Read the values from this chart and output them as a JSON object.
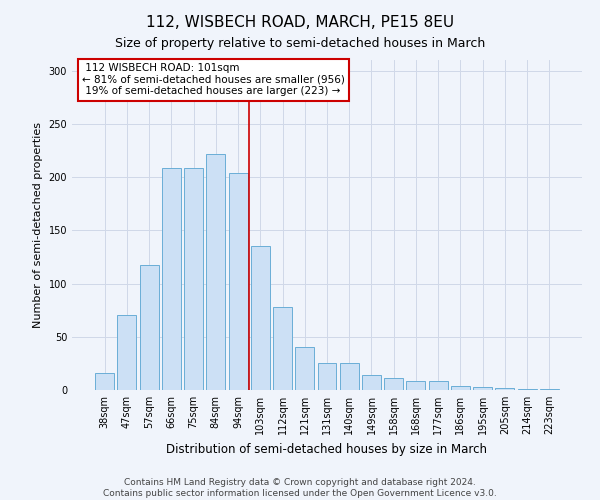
{
  "title": "112, WISBECH ROAD, MARCH, PE15 8EU",
  "subtitle": "Size of property relative to semi-detached houses in March",
  "xlabel": "Distribution of semi-detached houses by size in March",
  "ylabel": "Number of semi-detached properties",
  "categories": [
    "38sqm",
    "47sqm",
    "57sqm",
    "66sqm",
    "75sqm",
    "84sqm",
    "94sqm",
    "103sqm",
    "112sqm",
    "121sqm",
    "131sqm",
    "140sqm",
    "149sqm",
    "158sqm",
    "168sqm",
    "177sqm",
    "186sqm",
    "195sqm",
    "205sqm",
    "214sqm",
    "223sqm"
  ],
  "values": [
    16,
    70,
    117,
    209,
    209,
    222,
    204,
    135,
    78,
    40,
    25,
    25,
    14,
    11,
    8,
    8,
    4,
    3,
    2,
    1,
    1
  ],
  "bar_color": "#cce0f5",
  "bar_edge_color": "#6aaed6",
  "property_bin_index": 7,
  "property_label": "112 WISBECH ROAD: 101sqm",
  "pct_smaller": 81,
  "n_smaller": 956,
  "pct_larger": 19,
  "n_larger": 223,
  "annotation_box_color": "#ffffff",
  "annotation_box_edge_color": "#cc0000",
  "vline_color": "#cc0000",
  "grid_color": "#d0d8e8",
  "background_color": "#f0f4fb",
  "footer_line1": "Contains HM Land Registry data © Crown copyright and database right 2024.",
  "footer_line2": "Contains public sector information licensed under the Open Government Licence v3.0.",
  "ylim": [
    0,
    310
  ],
  "title_fontsize": 11,
  "subtitle_fontsize": 9,
  "xlabel_fontsize": 8.5,
  "ylabel_fontsize": 8,
  "tick_fontsize": 7,
  "footer_fontsize": 6.5,
  "ann_fontsize": 7.5
}
